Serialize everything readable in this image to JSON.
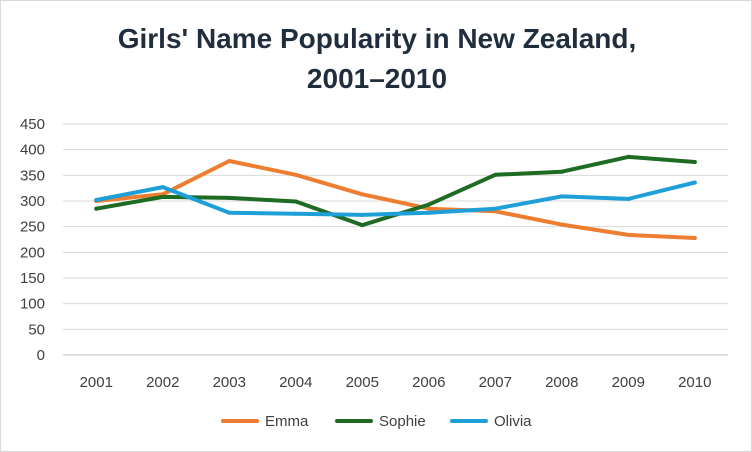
{
  "chart_data": {
    "type": "line",
    "title": "Girls' Name Popularity in New Zealand,",
    "title_line2": "2001–2010",
    "xlabel": "",
    "ylabel": "",
    "categories": [
      "2001",
      "2002",
      "2003",
      "2004",
      "2005",
      "2006",
      "2007",
      "2008",
      "2009",
      "2010"
    ],
    "ylim": [
      0,
      450
    ],
    "yticks": [
      0,
      50,
      100,
      150,
      200,
      250,
      300,
      350,
      400,
      450
    ],
    "grid": true,
    "legend_position": "bottom",
    "series": [
      {
        "name": "Emma",
        "color": "#ed7d31",
        "values": [
          300,
          313,
          378,
          351,
          313,
          285,
          280,
          254,
          234,
          228
        ]
      },
      {
        "name": "Sophie",
        "color": "#1e6b24",
        "values": [
          285,
          308,
          306,
          299,
          253,
          293,
          351,
          357,
          386,
          376
        ]
      },
      {
        "name": "Olivia",
        "color": "#1f9fd8",
        "values": [
          302,
          327,
          277,
          275,
          273,
          277,
          285,
          309,
          304,
          336
        ]
      }
    ]
  }
}
